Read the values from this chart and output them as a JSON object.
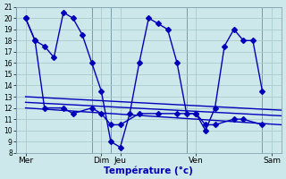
{
  "background_color": "#cce8ea",
  "grid_color": "#aacccc",
  "line_color": "#0000bb",
  "xlabel": "Température (°c)",
  "ylim": [
    8,
    21
  ],
  "xlim": [
    0,
    14
  ],
  "yticks": [
    8,
    9,
    10,
    11,
    12,
    13,
    14,
    15,
    16,
    17,
    18,
    19,
    20,
    21
  ],
  "xtick_positions": [
    0.5,
    4.5,
    5.5,
    9.5,
    13.5
  ],
  "xtick_labels": [
    "Mer",
    "Dim",
    "Jeu",
    "Ven",
    "Sam"
  ],
  "vlines": [
    0,
    4,
    5,
    9,
    13,
    14
  ],
  "series1_x": [
    0.5,
    1.0,
    1.5,
    2.0,
    2.5,
    3.0,
    3.5,
    4.0,
    4.5,
    5.0,
    5.5,
    6.0,
    6.5,
    7.0,
    7.5,
    8.0,
    8.5,
    9.0,
    9.5,
    10.0,
    10.5,
    11.0,
    11.5,
    12.0,
    12.5,
    13.0
  ],
  "series1_y": [
    20,
    18,
    17.5,
    16.5,
    20.5,
    20.0,
    18.5,
    16,
    13.5,
    9.0,
    8.5,
    11.5,
    16,
    20,
    19.5,
    19.0,
    16,
    11.5,
    11.5,
    10.0,
    12,
    17.5,
    19,
    18,
    18,
    13.5
  ],
  "series2_x": [
    0.5,
    1.0,
    1.5,
    2.5,
    3.0,
    4.0,
    4.5,
    5.0,
    5.5,
    6.5,
    7.5,
    8.5,
    9.5,
    10.0,
    10.5,
    11.5,
    12.0,
    13.0
  ],
  "series2_y": [
    20,
    18,
    12,
    12,
    11.5,
    12,
    11.5,
    10.5,
    10.5,
    11.5,
    11.5,
    11.5,
    11.5,
    10.5,
    10.5,
    11,
    11,
    10.5
  ],
  "trend1_x": [
    0.5,
    14
  ],
  "trend1_y": [
    13.0,
    11.8
  ],
  "trend2_x": [
    0.5,
    14
  ],
  "trend2_y": [
    12.5,
    11.3
  ],
  "trend3_x": [
    0.5,
    14
  ],
  "trend3_y": [
    12.0,
    10.5
  ],
  "markersize": 3,
  "linewidth": 1.0
}
